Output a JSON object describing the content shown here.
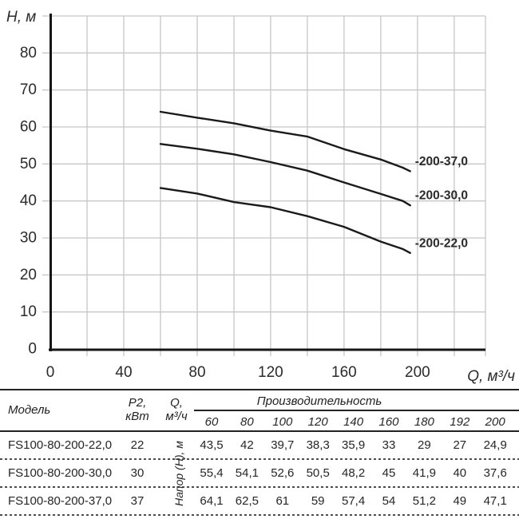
{
  "chart": {
    "y_ticks": [
      0,
      10,
      20,
      30,
      40,
      50,
      60,
      70,
      80
    ],
    "x_ticks": [
      0,
      40,
      80,
      120,
      160,
      200
    ]
  },
  "chart_data": {
    "type": "line",
    "title": "",
    "xlabel": "Q, м³/ч",
    "ylabel": "H, м",
    "x": [
      60,
      80,
      100,
      120,
      140,
      160,
      180,
      192,
      200
    ],
    "series": [
      {
        "name": "-200-37,0",
        "values": [
          64.1,
          62.5,
          61,
          59,
          57.4,
          54,
          51.2,
          49,
          47.1
        ]
      },
      {
        "name": "-200-30,0",
        "values": [
          55.4,
          54.1,
          52.6,
          50.5,
          48.2,
          45,
          41.9,
          40,
          37.6
        ]
      },
      {
        "name": "-200-22,0",
        "values": [
          43.5,
          42,
          39.7,
          38.3,
          35.9,
          33,
          29,
          27,
          24.9
        ]
      }
    ],
    "xlim": [
      0,
      237
    ],
    "ylim": [
      0,
      90
    ],
    "grid": true,
    "legend_position": "inline-labels-right"
  },
  "table": {
    "col_model": "Модель",
    "p2_line1": "P2,",
    "p2_line2": "кВт",
    "q_line1": "Q,",
    "q_line2": "м³/ч",
    "group_header": "Производительность",
    "flow_values": [
      "60",
      "80",
      "100",
      "120",
      "140",
      "160",
      "180",
      "192",
      "200"
    ],
    "napor_label": "Напор (Н), м",
    "rows": [
      {
        "model": "FS100-80-200-22,0",
        "p2": "22",
        "values": [
          "43,5",
          "42",
          "39,7",
          "38,3",
          "35,9",
          "33",
          "29",
          "27",
          "24,9"
        ]
      },
      {
        "model": "FS100-80-200-30,0",
        "p2": "30",
        "values": [
          "55,4",
          "54,1",
          "52,6",
          "50,5",
          "48,2",
          "45",
          "41,9",
          "40",
          "37,6"
        ]
      },
      {
        "model": "FS100-80-200-37,0",
        "p2": "37",
        "values": [
          "64,1",
          "62,5",
          "61",
          "59",
          "57,4",
          "54",
          "51,2",
          "49",
          "47,1"
        ]
      }
    ]
  }
}
